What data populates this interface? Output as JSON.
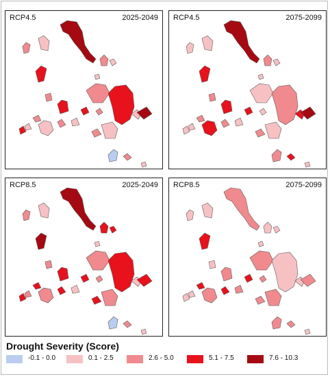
{
  "panels": [
    {
      "scenario": "RCP4.5",
      "period": "2025-2049"
    },
    {
      "scenario": "RCP4.5",
      "period": "2075-2099"
    },
    {
      "scenario": "RCP8.5",
      "period": "2025-2049"
    },
    {
      "scenario": "RCP8.5",
      "period": "2075-2099"
    }
  ],
  "legend": {
    "title": "Drought Severity (Score)",
    "classes": [
      {
        "label": "-0.1 - 0.0",
        "color": "#b8cdf0"
      },
      {
        "label": "0.1 - 2.5",
        "color": "#f7c1c4"
      },
      {
        "label": "2.6 - 5.0",
        "color": "#f08a8e"
      },
      {
        "label": "5.1 - 7.5",
        "color": "#e8121c"
      },
      {
        "label": "7.6 - 10.3",
        "color": "#a50a12"
      }
    ]
  }
}
